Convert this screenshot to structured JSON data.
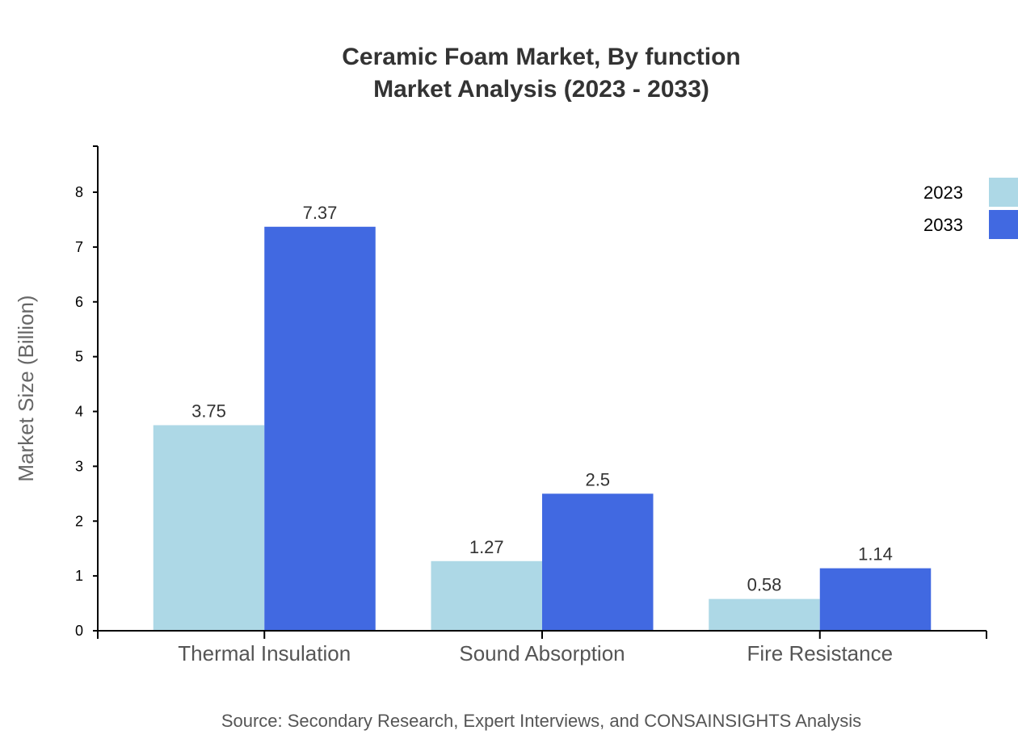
{
  "chart_data": {
    "type": "bar",
    "title": "Ceramic Foam Market, By function",
    "subtitle": "Market Analysis (2023 - 2033)",
    "xlabel": "",
    "ylabel": "Market Size (Billion)",
    "ylim": [
      0,
      8.84
    ],
    "yticks": [
      0,
      1,
      2,
      3,
      4,
      5,
      6,
      7,
      8
    ],
    "categories": [
      "Thermal Insulation",
      "Sound Absorption",
      "Fire Resistance"
    ],
    "series": [
      {
        "name": "2023",
        "color": "#add8e6",
        "values": [
          3.75,
          1.27,
          0.58
        ],
        "labels": [
          "3.75",
          "1.27",
          "0.58"
        ]
      },
      {
        "name": "2033",
        "color": "#4169e1",
        "values": [
          7.37,
          2.5,
          1.14
        ],
        "labels": [
          "7.37",
          "2.5",
          "1.14"
        ]
      }
    ],
    "legend": "top-right",
    "grid": false,
    "source": "Source: Secondary Research, Expert Interviews, and CONSAINSIGHTS Analysis"
  }
}
